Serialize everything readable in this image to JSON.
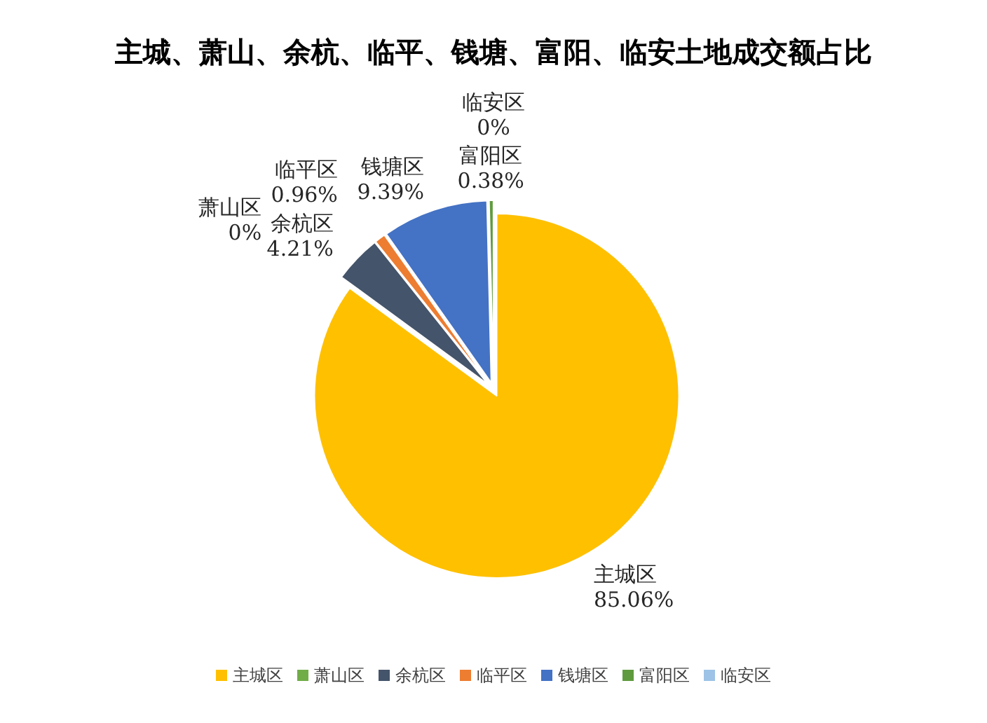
{
  "chart_data": {
    "type": "pie",
    "title": "主城、萧山、余杭、临平、钱塘、富阳、临安土地成交额占比",
    "categories": [
      "主城区",
      "萧山区",
      "余杭区",
      "临平区",
      "钱塘区",
      "富阳区",
      "临安区"
    ],
    "values": [
      85.06,
      0,
      4.21,
      0.96,
      9.39,
      0.38,
      0
    ],
    "colors": [
      "#ffc000",
      "#70ad47",
      "#44546a",
      "#ed7d31",
      "#4472c4",
      "#5f9b3e",
      "#9dc3e6"
    ],
    "value_labels": [
      "85.06%",
      "0%",
      "4.21%",
      "0.96%",
      "9.39%",
      "0.38%",
      "0%"
    ],
    "legend": "bottom"
  }
}
